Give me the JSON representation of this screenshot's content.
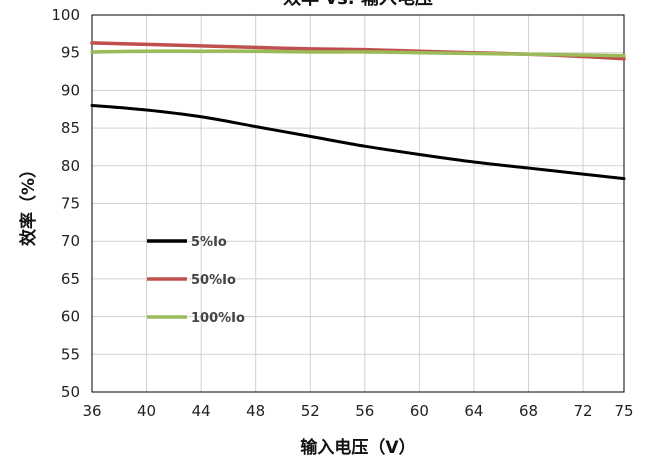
{
  "chart_data": {
    "type": "line",
    "title": "效率 vs. 输入电压",
    "xlabel": "输入电压（V）",
    "ylabel": "效率（%）",
    "x": [
      36,
      40,
      44,
      48,
      52,
      56,
      60,
      64,
      68,
      72,
      75
    ],
    "xlim": [
      36,
      75
    ],
    "ylim": [
      50,
      100
    ],
    "yticks": [
      50,
      55,
      60,
      65,
      70,
      75,
      80,
      85,
      90,
      95,
      100
    ],
    "grid": true,
    "legend_position": "left",
    "series": [
      {
        "name": "5%Io",
        "color": "#000000",
        "values": [
          88.0,
          87.4,
          86.5,
          85.2,
          83.9,
          82.6,
          81.5,
          80.5,
          79.7,
          78.9,
          78.3
        ]
      },
      {
        "name": "50%Io",
        "color": "#c0504d",
        "values": [
          96.3,
          96.1,
          95.9,
          95.7,
          95.5,
          95.4,
          95.2,
          95.0,
          94.8,
          94.5,
          94.2
        ]
      },
      {
        "name": "100%Io",
        "color": "#9bbb59",
        "values": [
          95.1,
          95.2,
          95.2,
          95.2,
          95.1,
          95.1,
          95.0,
          94.9,
          94.8,
          94.7,
          94.6
        ]
      }
    ]
  }
}
